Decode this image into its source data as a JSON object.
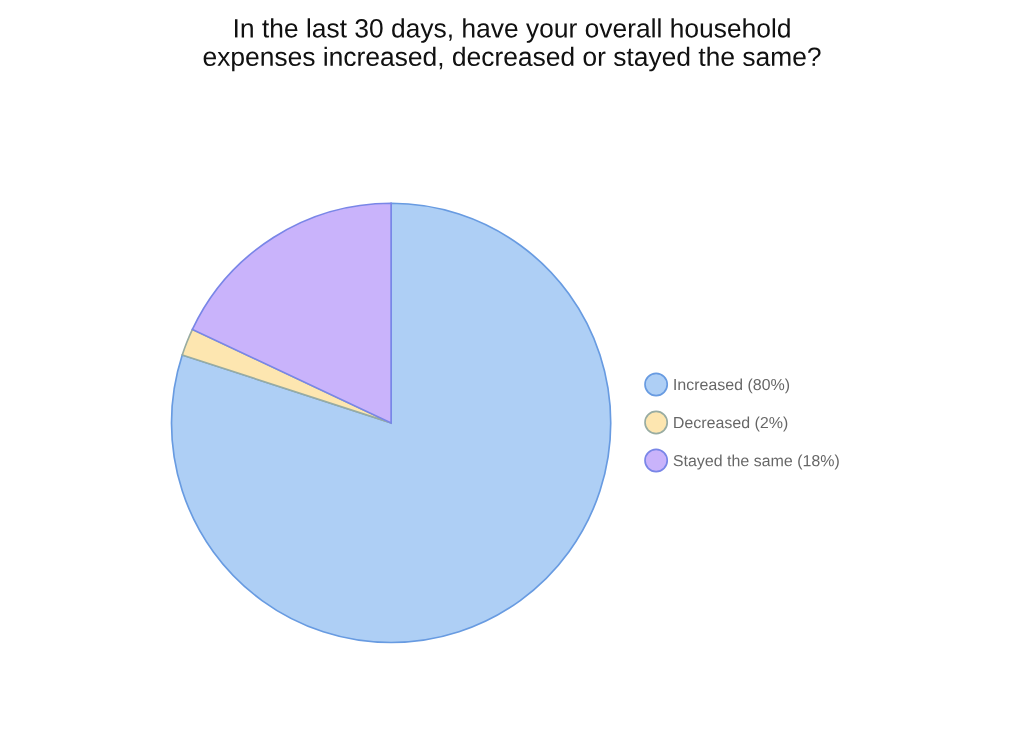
{
  "chart_data": {
    "type": "pie",
    "title": "In the last 30 days, have your overall household\nexpenses increased, decreased or stayed the same?",
    "categories": [
      "Increased (80%)",
      "Decreased (2%)",
      "Stayed the same (18%)"
    ],
    "values": [
      80,
      2,
      18
    ],
    "colors": [
      "#aecff5",
      "#fde6b0",
      "#c9b3fb"
    ],
    "legend": "right"
  }
}
